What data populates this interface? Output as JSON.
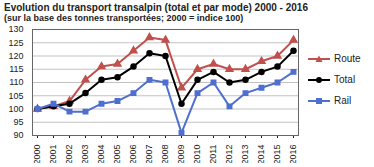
{
  "chart_data": {
    "type": "line",
    "title": "Evolution du transport transalpin (total et par mode) 2000 - 2016",
    "subtitle": "(sur la base des tonnes transportées; 2000 = indice 100)",
    "categories": [
      "2000",
      "2001",
      "2002",
      "2003",
      "2004",
      "2005",
      "2006",
      "2007",
      "2008",
      "2009",
      "2010",
      "2011",
      "2012",
      "2013",
      "2014",
      "2015",
      "2016"
    ],
    "series": [
      {
        "name": "Route",
        "color": "#c0504d",
        "marker": "triangle",
        "line_style": "solid",
        "values": [
          100,
          101,
          103,
          111,
          116,
          117,
          122,
          127,
          126,
          108,
          115,
          117,
          115,
          115,
          118,
          120,
          126
        ]
      },
      {
        "name": "Total",
        "color": "#000000",
        "marker": "circle",
        "line_style": "solid",
        "values": [
          100,
          101,
          102,
          106,
          111,
          112,
          116,
          121,
          120,
          102,
          111,
          114,
          110,
          111,
          114,
          116,
          122
        ]
      },
      {
        "name": "Rail",
        "color": "#4f6fd0",
        "marker": "square",
        "line_style": "solid",
        "values": [
          100,
          102,
          99,
          99,
          102,
          103,
          106,
          111,
          110,
          91,
          106,
          110,
          101,
          106,
          108,
          110,
          114
        ]
      }
    ],
    "ylim": [
      90,
      130
    ],
    "yticks": [
      90,
      95,
      100,
      105,
      110,
      115,
      120,
      125,
      130
    ],
    "grid": true,
    "legend": "right"
  }
}
